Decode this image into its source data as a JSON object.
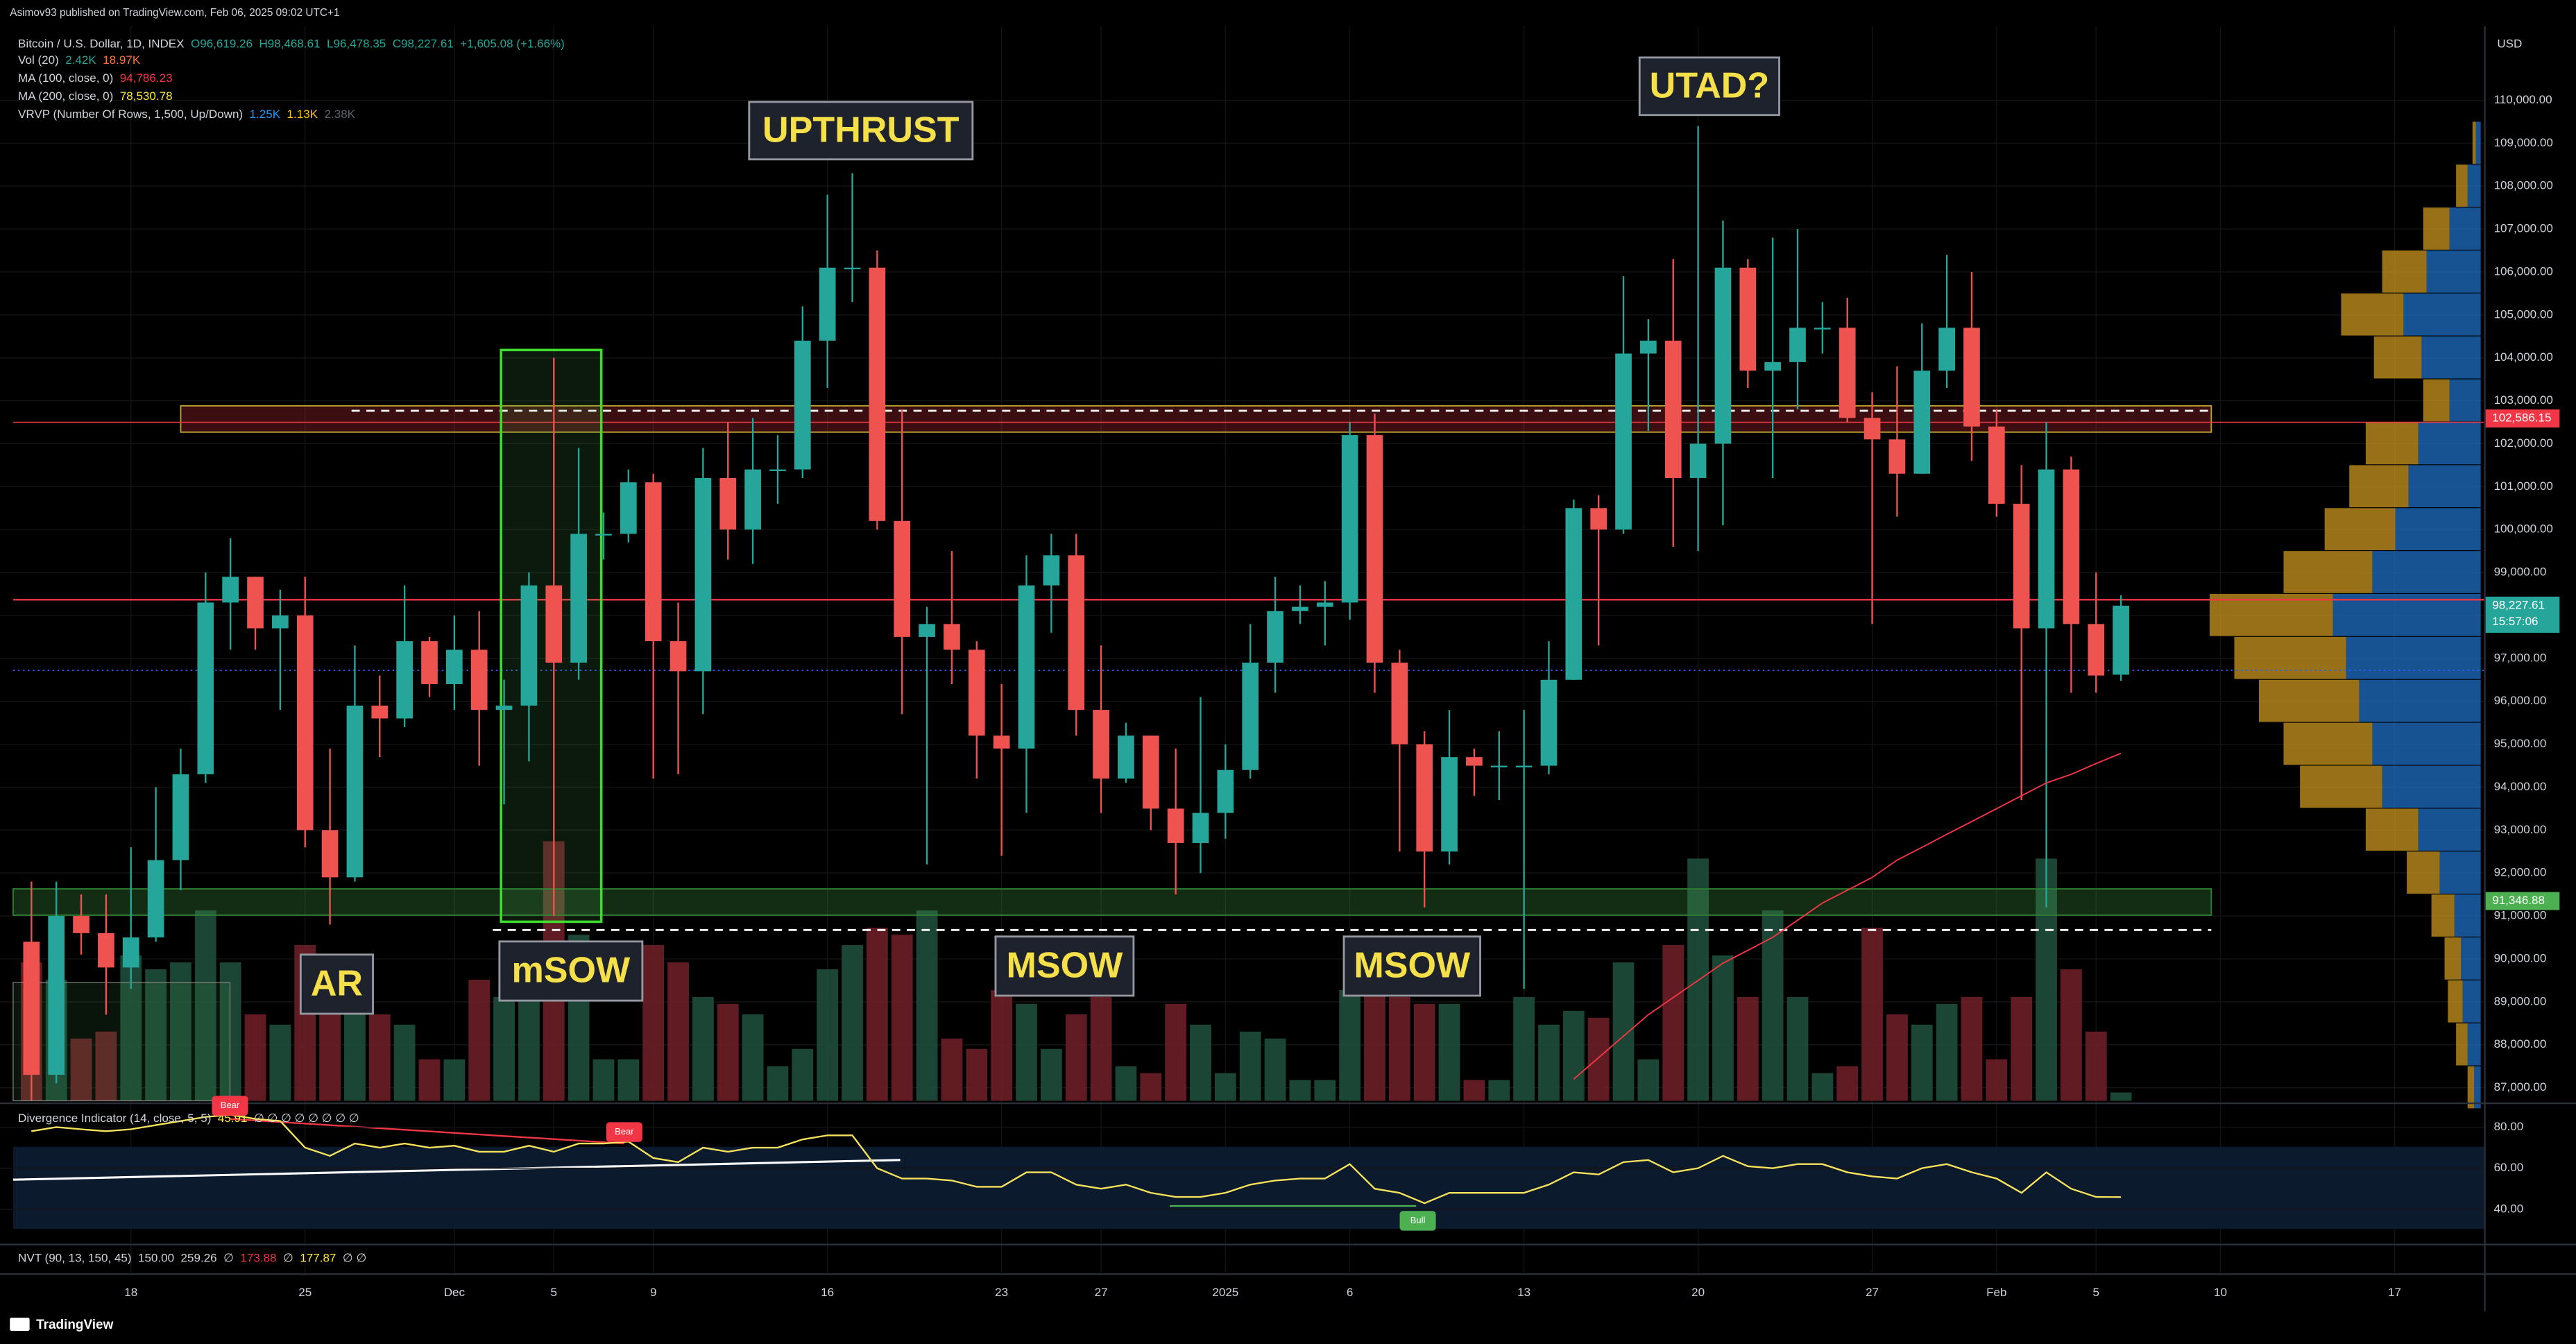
{
  "chart_data": {
    "type": "candlestick",
    "publisher": "Asimov93 published on TradingView.com, Feb 06, 2025 09:02 UTC+1",
    "currency": "USD",
    "brand": "TradingView",
    "legend": [
      [
        {
          "text": "Bitcoin / U.S. Dollar, 1D, INDEX",
          "color": "#d1d4dc"
        },
        {
          "text": "O96,619.26",
          "color": "#26a69a"
        },
        {
          "text": "H98,468.61",
          "color": "#26a69a"
        },
        {
          "text": "L96,478.35",
          "color": "#26a69a"
        },
        {
          "text": "C98,227.61",
          "color": "#26a69a"
        },
        {
          "text": "+1,605.08 (+1.66%)",
          "color": "#26a69a"
        }
      ],
      [
        {
          "text": "Vol (20)",
          "color": "#d1d4dc"
        },
        {
          "text": "2.42K",
          "color": "#26a69a"
        },
        {
          "text": "18.97K",
          "color": "#ff7043"
        }
      ],
      [
        {
          "text": "MA (100, close, 0)",
          "color": "#d1d4dc"
        },
        {
          "text": "94,786.23",
          "color": "#f23645"
        }
      ],
      [
        {
          "text": "MA (200, close, 0)",
          "color": "#d1d4dc"
        },
        {
          "text": "78,530.78",
          "color": "#ffeb3b"
        }
      ],
      [
        {
          "text": "VRVP (Number Of Rows, 1,500, Up/Down)",
          "color": "#d1d4dc"
        },
        {
          "text": "1.25K",
          "color": "#2196f3"
        },
        {
          "text": "1.13K",
          "color": "#ffc107"
        },
        {
          "text": "2.38K",
          "color": "#5d606b"
        }
      ]
    ],
    "indicator_legends": [
      [
        {
          "text": "Divergence Indicator (14, close, 5, 5)",
          "color": "#d1d4dc"
        },
        {
          "text": "45.91",
          "color": "#ffeb3b"
        },
        {
          "text": "∅ ∅ ∅ ∅ ∅ ∅ ∅ ∅",
          "color": "#d1d4dc"
        }
      ],
      [
        {
          "text": "NVT (90, 13, 150, 45)",
          "color": "#d1d4dc"
        },
        {
          "text": "150.00",
          "color": "#d1d4dc"
        },
        {
          "text": "259.26",
          "color": "#d1d4dc"
        },
        {
          "text": "∅",
          "color": "#d1d4dc"
        },
        {
          "text": "173.88",
          "color": "#f23645"
        },
        {
          "text": "∅",
          "color": "#d1d4dc"
        },
        {
          "text": "177.87",
          "color": "#ffeb3b"
        },
        {
          "text": "∅ ∅",
          "color": "#d1d4dc"
        }
      ]
    ],
    "x": [
      "2024-11-14",
      "2024-11-15",
      "2024-11-16",
      "2024-11-17",
      "2024-11-18",
      "2024-11-19",
      "2024-11-20",
      "2024-11-21",
      "2024-11-22",
      "2024-11-23",
      "2024-11-24",
      "2024-11-25",
      "2024-11-26",
      "2024-11-27",
      "2024-11-28",
      "2024-11-29",
      "2024-11-30",
      "2024-12-01",
      "2024-12-02",
      "2024-12-03",
      "2024-12-04",
      "2024-12-05",
      "2024-12-06",
      "2024-12-07",
      "2024-12-08",
      "2024-12-09",
      "2024-12-10",
      "2024-12-11",
      "2024-12-12",
      "2024-12-13",
      "2024-12-14",
      "2024-12-15",
      "2024-12-16",
      "2024-12-17",
      "2024-12-18",
      "2024-12-19",
      "2024-12-20",
      "2024-12-21",
      "2024-12-22",
      "2024-12-23",
      "2024-12-24",
      "2024-12-25",
      "2024-12-26",
      "2024-12-27",
      "2024-12-28",
      "2024-12-29",
      "2024-12-30",
      "2024-12-31",
      "2025-01-01",
      "2025-01-02",
      "2025-01-03",
      "2025-01-04",
      "2025-01-05",
      "2025-01-06",
      "2025-01-07",
      "2025-01-08",
      "2025-01-09",
      "2025-01-10",
      "2025-01-11",
      "2025-01-12",
      "2025-01-13",
      "2025-01-14",
      "2025-01-15",
      "2025-01-16",
      "2025-01-17",
      "2025-01-18",
      "2025-01-19",
      "2025-01-20",
      "2025-01-21",
      "2025-01-22",
      "2025-01-23",
      "2025-01-24",
      "2025-01-25",
      "2025-01-26",
      "2025-01-27",
      "2025-01-28",
      "2025-01-29",
      "2025-01-30",
      "2025-01-31",
      "2025-02-01",
      "2025-02-02",
      "2025-02-03",
      "2025-02-04",
      "2025-02-05",
      "2025-02-06"
    ],
    "open": [
      90400,
      87300,
      91000,
      90600,
      89800,
      90500,
      92300,
      94300,
      98300,
      98900,
      97700,
      98000,
      93000,
      91900,
      95900,
      95600,
      97400,
      96400,
      97200,
      95800,
      95900,
      98700,
      96900,
      99900,
      99900,
      101100,
      97400,
      96700,
      101200,
      100000,
      101400,
      101400,
      104400,
      106100,
      106100,
      100200,
      97500,
      97800,
      97200,
      95200,
      94900,
      98700,
      99400,
      95800,
      94200,
      95200,
      93500,
      92700,
      93400,
      94400,
      96900,
      98100,
      98200,
      98300,
      102200,
      96900,
      95000,
      92500,
      94700,
      94500,
      94500,
      94500,
      96500,
      100500,
      100000,
      104100,
      104400,
      101200,
      102000,
      106100,
      103700,
      103900,
      104700,
      104700,
      102600,
      102100,
      101300,
      103700,
      104700,
      102400,
      100600,
      97700,
      101400,
      97800,
      96619.26
    ],
    "high": [
      91800,
      91800,
      91500,
      91500,
      92600,
      94000,
      94900,
      99000,
      99800,
      98900,
      98600,
      98900,
      94900,
      97300,
      96600,
      98700,
      97500,
      98000,
      98100,
      96500,
      99000,
      104000,
      101900,
      100400,
      101400,
      101300,
      98300,
      101900,
      102500,
      102600,
      102200,
      105200,
      107800,
      108300,
      106500,
      102800,
      98200,
      99500,
      97400,
      96400,
      99400,
      99900,
      99900,
      97300,
      95500,
      95200,
      94900,
      96100,
      95000,
      97800,
      98900,
      98700,
      98800,
      102500,
      102700,
      97200,
      95300,
      95800,
      94900,
      95300,
      95800,
      97400,
      100700,
      100800,
      105900,
      104900,
      106300,
      109400,
      107200,
      106300,
      106800,
      107000,
      105300,
      105400,
      103200,
      103800,
      104800,
      106400,
      106000,
      102800,
      101500,
      102500,
      101700,
      99000,
      98468.61
    ],
    "low": [
      86700,
      87100,
      90100,
      88700,
      89300,
      90400,
      91600,
      94100,
      97200,
      97200,
      95800,
      92600,
      90800,
      91800,
      94700,
      95400,
      96100,
      95800,
      94500,
      93600,
      94600,
      91000,
      96500,
      99300,
      99700,
      94200,
      94300,
      95700,
      99300,
      99200,
      100600,
      101200,
      103300,
      105300,
      100000,
      95700,
      92200,
      96400,
      94200,
      92400,
      93400,
      97600,
      95200,
      93400,
      94100,
      93000,
      91500,
      92000,
      92800,
      94200,
      96200,
      97800,
      97300,
      97900,
      96200,
      92500,
      91200,
      92200,
      93800,
      93700,
      89300,
      94300,
      96500,
      97300,
      99900,
      102300,
      99600,
      99500,
      100100,
      103300,
      101200,
      102800,
      104100,
      102500,
      97800,
      100300,
      101300,
      103300,
      101600,
      100300,
      93700,
      91200,
      96200,
      96200,
      96478.35
    ],
    "close": [
      87300,
      91000,
      90600,
      89800,
      90500,
      92300,
      94300,
      98300,
      98900,
      97700,
      98000,
      93000,
      91900,
      95900,
      95600,
      97400,
      96400,
      97200,
      95800,
      95900,
      98700,
      96900,
      99900,
      99900,
      101100,
      97400,
      96700,
      101200,
      100000,
      101400,
      101400,
      104400,
      106100,
      106100,
      100200,
      97500,
      97800,
      97200,
      95200,
      94900,
      98700,
      99400,
      95800,
      94200,
      95200,
      93500,
      92700,
      93400,
      94400,
      96900,
      98100,
      98200,
      98300,
      102200,
      96900,
      95000,
      92500,
      94700,
      94500,
      94500,
      94500,
      96500,
      100500,
      100000,
      104100,
      104400,
      101200,
      102000,
      106100,
      103700,
      103900,
      104700,
      104700,
      102600,
      102100,
      101300,
      103700,
      104700,
      102400,
      100600,
      97700,
      101400,
      97800,
      96600,
      98227.61
    ],
    "up_color": "#26a69a",
    "down_color": "#ef5350",
    "volume": [
      40,
      35,
      18,
      20,
      42,
      38,
      40,
      55,
      40,
      25,
      22,
      45,
      40,
      35,
      25,
      22,
      12,
      12,
      35,
      30,
      38,
      75,
      48,
      12,
      12,
      45,
      40,
      30,
      28,
      25,
      10,
      15,
      38,
      45,
      50,
      48,
      55,
      18,
      15,
      32,
      28,
      15,
      25,
      30,
      10,
      8,
      28,
      22,
      8,
      20,
      18,
      6,
      6,
      32,
      32,
      30,
      28,
      28,
      6,
      6,
      30,
      22,
      26,
      24,
      40,
      12,
      45,
      70,
      42,
      30,
      55,
      30,
      8,
      10,
      50,
      25,
      22,
      28,
      30,
      12,
      30,
      70,
      38,
      20,
      2.42
    ],
    "ma100": {
      "color": "#f23645",
      "values": [
        null,
        null,
        null,
        null,
        null,
        null,
        null,
        null,
        null,
        null,
        null,
        null,
        null,
        null,
        null,
        null,
        null,
        null,
        null,
        null,
        null,
        null,
        null,
        null,
        null,
        null,
        null,
        null,
        null,
        null,
        null,
        null,
        null,
        null,
        null,
        null,
        null,
        null,
        null,
        null,
        null,
        null,
        null,
        null,
        null,
        null,
        null,
        null,
        null,
        null,
        null,
        null,
        null,
        null,
        null,
        null,
        null,
        null,
        null,
        null,
        null,
        null,
        87200,
        87700,
        88200,
        88700,
        89100,
        89500,
        89900,
        90200,
        90500,
        90900,
        91300,
        91600,
        91900,
        92300,
        92600,
        92900,
        93200,
        93500,
        93800,
        94100,
        94300,
        94550,
        94786.23
      ]
    },
    "xlim": [
      "2024-11-13",
      "2025-02-20"
    ],
    "xticks": [
      {
        "value": "2024-11-18",
        "label": "18"
      },
      {
        "value": "2024-11-25",
        "label": "25"
      },
      {
        "value": "2024-12-01",
        "label": "Dec"
      },
      {
        "value": "2024-12-05",
        "label": "5"
      },
      {
        "value": "2024-12-09",
        "label": "9"
      },
      {
        "value": "2024-12-16",
        "label": "16"
      },
      {
        "value": "2024-12-23",
        "label": "23"
      },
      {
        "value": "2024-12-27",
        "label": "27"
      },
      {
        "value": "2025-01-01",
        "label": "2025"
      },
      {
        "value": "2025-01-06",
        "label": "6"
      },
      {
        "value": "2025-01-13",
        "label": "13"
      },
      {
        "value": "2025-01-20",
        "label": "20"
      },
      {
        "value": "2025-01-27",
        "label": "27"
      },
      {
        "value": "2025-02-01",
        "label": "Feb"
      },
      {
        "value": "2025-02-05",
        "label": "5"
      },
      {
        "value": "2025-02-10",
        "label": "10"
      },
      {
        "value": "2025-02-17",
        "label": "17"
      }
    ],
    "ylim": [
      86694,
      111569
    ],
    "yticks": [
      {
        "value": 87000,
        "label": "87,000.00"
      },
      {
        "value": 88000,
        "label": "88,000.00"
      },
      {
        "value": 89000,
        "label": "89,000.00"
      },
      {
        "value": 90000,
        "label": "90,000.00"
      },
      {
        "value": 91000,
        "label": "91,000.00"
      },
      {
        "value": 92000,
        "label": "92,000.00"
      },
      {
        "value": 93000,
        "label": "93,000.00"
      },
      {
        "value": 94000,
        "label": "94,000.00"
      },
      {
        "value": 95000,
        "label": "95,000.00"
      },
      {
        "value": 96000,
        "label": "96,000.00"
      },
      {
        "value": 97000,
        "label": "97,000.00"
      },
      {
        "value": 98000,
        "label": "98,000.00"
      },
      {
        "value": 99000,
        "label": "99,000.00"
      },
      {
        "value": 100000,
        "label": "100,000.00"
      },
      {
        "value": 101000,
        "label": "101,000.00"
      },
      {
        "value": 102000,
        "label": "102,000.00"
      },
      {
        "value": 103000,
        "label": "103,000.00"
      },
      {
        "value": 104000,
        "label": "104,000.00"
      },
      {
        "value": 105000,
        "label": "105,000.00"
      },
      {
        "value": 106000,
        "label": "106,000.00"
      },
      {
        "value": 107000,
        "label": "107,000.00"
      },
      {
        "value": 108000,
        "label": "108,000.00"
      },
      {
        "value": 109000,
        "label": "109,000.00"
      },
      {
        "value": 110000,
        "label": "110,000.00"
      }
    ],
    "price_labels": [
      {
        "value": 102586.15,
        "label": "102,586.15",
        "color": "#f23645"
      },
      {
        "value": 98227.61,
        "label": "98,227.61",
        "color": "#26a69a",
        "sublabel": "15:57:06"
      },
      {
        "value": 91346.88,
        "label": "91,346.88",
        "color": "#4caf50"
      }
    ],
    "volume_profile": {
      "levels": [
        87000,
        88000,
        89000,
        90000,
        91000,
        92000,
        93000,
        94000,
        95000,
        96000,
        97000,
        98000,
        99000,
        100000,
        101000,
        102000,
        103000,
        104000,
        105000,
        106000,
        107000,
        108000,
        109000
      ],
      "up": [
        4,
        8,
        11,
        12,
        16,
        25,
        38,
        60,
        66,
        74,
        82,
        90,
        66,
        52,
        44,
        38,
        19,
        36,
        47,
        33,
        19,
        8,
        3
      ],
      "down": [
        4,
        7,
        9,
        10,
        14,
        20,
        32,
        50,
        54,
        61,
        68,
        75,
        54,
        43,
        36,
        32,
        16,
        29,
        38,
        27,
        16,
        7,
        2
      ],
      "up_color": "#1f6fc4",
      "down_color": "#c99520"
    },
    "divergence": {
      "color": "#f7e35b",
      "ylim": [
        24.8,
        91.2
      ],
      "yticks": [
        {
          "value": 40,
          "label": "40.00"
        },
        {
          "value": 60,
          "label": "60.00"
        },
        {
          "value": 80,
          "label": "80.00"
        }
      ],
      "values": [
        78,
        80,
        79,
        78,
        79,
        81,
        83,
        85,
        86,
        84,
        83,
        70,
        66,
        72,
        70,
        72,
        70,
        71,
        68,
        68,
        71,
        68,
        72,
        72,
        73,
        65,
        63,
        70,
        68,
        70,
        70,
        74,
        76,
        76,
        60,
        55,
        55,
        54,
        51,
        51,
        58,
        58,
        52,
        50,
        52,
        48,
        46,
        46,
        48,
        52,
        54,
        55,
        55,
        62,
        50,
        48,
        43,
        48,
        48,
        48,
        48,
        52,
        58,
        57,
        63,
        64,
        58,
        60,
        66,
        61,
        60,
        62,
        62,
        58,
        56,
        55,
        60,
        62,
        58,
        55,
        48,
        58,
        50,
        46,
        45.91
      ]
    },
    "annotations": [
      "UPTHRUST",
      "UTAD?",
      "AR",
      "mSOW",
      "MSOW",
      "MSOW"
    ],
    "signals": [
      "Bear",
      "Bear",
      "Bull"
    ]
  }
}
